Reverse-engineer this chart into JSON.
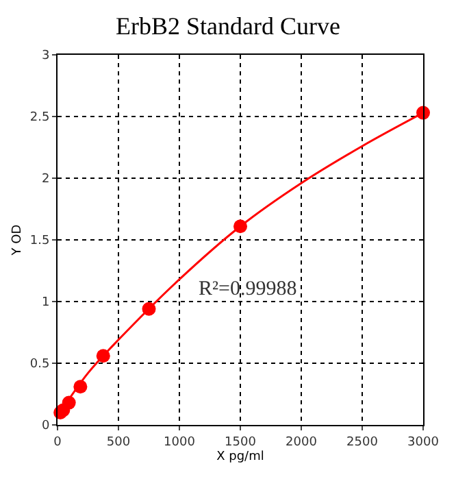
{
  "chart_data": {
    "type": "scatter",
    "title": "ErbB2 Standard Curve",
    "xlabel": "X pg/ml",
    "ylabel": "Y OD",
    "xlim": [
      0,
      3000
    ],
    "xticks": [
      0,
      500,
      1000,
      1500,
      2000,
      2500,
      3000
    ],
    "ylim": [
      0,
      3
    ],
    "yticks": [
      0,
      0.5,
      1,
      1.5,
      2,
      2.5,
      3
    ],
    "grid": true,
    "marker": "circle",
    "annotations": [
      "R²=0.99988"
    ],
    "series": [
      {
        "type": "line",
        "color": "#ff0000",
        "marker": "none",
        "x": [
          0,
          250,
          500,
          1000,
          1500,
          2000,
          2500,
          3000
        ],
        "values": [
          0.07,
          0.42,
          0.69,
          1.18,
          1.61,
          1.96,
          2.26,
          2.53
        ]
      },
      {
        "color": "#ff0000",
        "x": [
          23.4,
          46.9,
          93.75,
          187.5,
          375,
          750,
          1500,
          3000
        ],
        "values": [
          0.1,
          0.12,
          0.18,
          0.31,
          0.56,
          0.94,
          1.61,
          2.53
        ]
      }
    ]
  }
}
